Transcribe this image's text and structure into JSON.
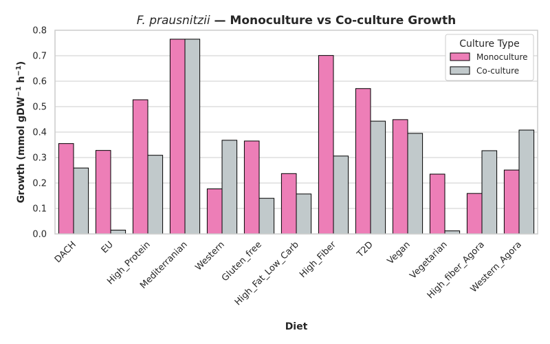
{
  "chart_data": {
    "type": "bar",
    "title_species": "F. prausnitzii",
    "title_rest": " — Monoculture vs Co-culture Growth",
    "xlabel": "Diet",
    "ylabel_main": "Growth (mmol gDW",
    "ylabel_exp1": "−1",
    "ylabel_mid": " h",
    "ylabel_exp2": "−1",
    "ylabel_end": ")",
    "ylim": [
      0,
      0.8
    ],
    "yticks": [
      "0.0",
      "0.1",
      "0.2",
      "0.3",
      "0.4",
      "0.5",
      "0.6",
      "0.7",
      "0.8"
    ],
    "grid": "y",
    "legend": {
      "title": "Culture Type",
      "position": "top-right"
    },
    "categories": [
      "DACH",
      "EU",
      "High_Protein",
      "Mediterranian",
      "Western",
      "Gluten_free",
      "High_Fat_Low_Carb",
      "High_Fiber",
      "T2D",
      "Vegan",
      "Vegetarian",
      "High_fiber_Agora",
      "Western_Agora"
    ],
    "series": [
      {
        "name": "Monoculture",
        "color": "#ed7eb7",
        "values": [
          0.355,
          0.328,
          0.527,
          0.765,
          0.177,
          0.365,
          0.237,
          0.701,
          0.571,
          0.449,
          0.235,
          0.159,
          0.251
        ]
      },
      {
        "name": "Co-culture",
        "color": "#c1c9cb",
        "values": [
          0.259,
          0.015,
          0.309,
          0.765,
          0.368,
          0.14,
          0.157,
          0.306,
          0.443,
          0.395,
          0.012,
          0.327,
          0.408
        ]
      }
    ]
  }
}
